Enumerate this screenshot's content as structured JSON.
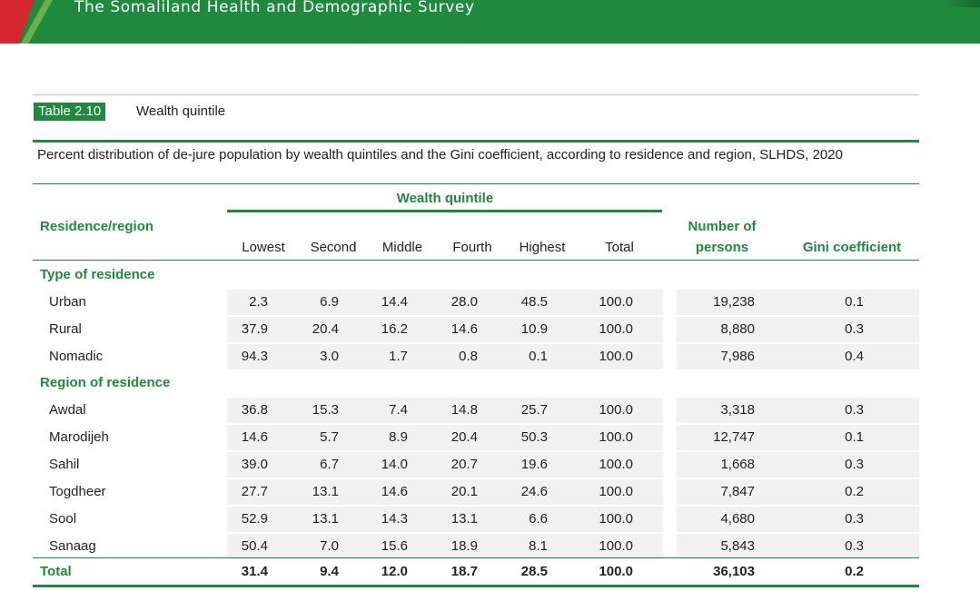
{
  "header": {
    "title": "The Somaliland Health and Demographic Survey"
  },
  "table": {
    "number": "Table 2.10",
    "title": "Wealth quintile",
    "caption": "Percent distribution of de-jure population by wealth quintiles and the Gini coefficient, according to residence and region, SLHDS, 2020",
    "group_header": "Wealth quintile",
    "columns": {
      "residence": "Residence/region",
      "lowest": "Lowest",
      "second": "Second",
      "middle": "Middle",
      "fourth": "Fourth",
      "highest": "Highest",
      "total": "Total",
      "persons_line1": "Number of",
      "persons_line2": "persons",
      "gini": "Gini coefficient"
    },
    "sections": [
      {
        "label": "Type of residence",
        "rows": [
          {
            "name": "Urban",
            "cells": [
              "2.3",
              "6.9",
              "14.4",
              "28.0",
              "48.5",
              "100.0",
              "19,238",
              "0.1"
            ]
          },
          {
            "name": "Rural",
            "cells": [
              "37.9",
              "20.4",
              "16.2",
              "14.6",
              "10.9",
              "100.0",
              "8,880",
              "0.3"
            ]
          },
          {
            "name": "Nomadic",
            "cells": [
              "94.3",
              "3.0",
              "1.7",
              "0.8",
              "0.1",
              "100.0",
              "7,986",
              "0.4"
            ]
          }
        ]
      },
      {
        "label": "Region of residence",
        "rows": [
          {
            "name": "Awdal",
            "cells": [
              "36.8",
              "15.3",
              "7.4",
              "14.8",
              "25.7",
              "100.0",
              "3,318",
              "0.3"
            ]
          },
          {
            "name": "Marodijeh",
            "cells": [
              "14.6",
              "5.7",
              "8.9",
              "20.4",
              "50.3",
              "100.0",
              "12,747",
              "0.1"
            ]
          },
          {
            "name": "Sahil",
            "cells": [
              "39.0",
              "6.7",
              "14.0",
              "20.7",
              "19.6",
              "100.0",
              "1,668",
              "0.3"
            ]
          },
          {
            "name": "Togdheer",
            "cells": [
              "27.7",
              "13.1",
              "14.6",
              "20.1",
              "24.6",
              "100.0",
              "7,847",
              "0.2"
            ]
          },
          {
            "name": "Sool",
            "cells": [
              "52.9",
              "13.1",
              "14.3",
              "13.1",
              "6.6",
              "100.0",
              "4,680",
              "0.3"
            ]
          },
          {
            "name": "Sanaag",
            "cells": [
              "50.4",
              "7.0",
              "15.6",
              "18.9",
              "8.1",
              "100.0",
              "5,843",
              "0.3"
            ]
          }
        ]
      }
    ],
    "total": {
      "name": "Total",
      "cells": [
        "31.4",
        "9.4",
        "12.0",
        "18.7",
        "28.5",
        "100.0",
        "36,103",
        "0.2"
      ]
    }
  },
  "colors": {
    "green": "#1f8a3e",
    "red": "#d6262f",
    "shade": "#f1f1f1"
  }
}
